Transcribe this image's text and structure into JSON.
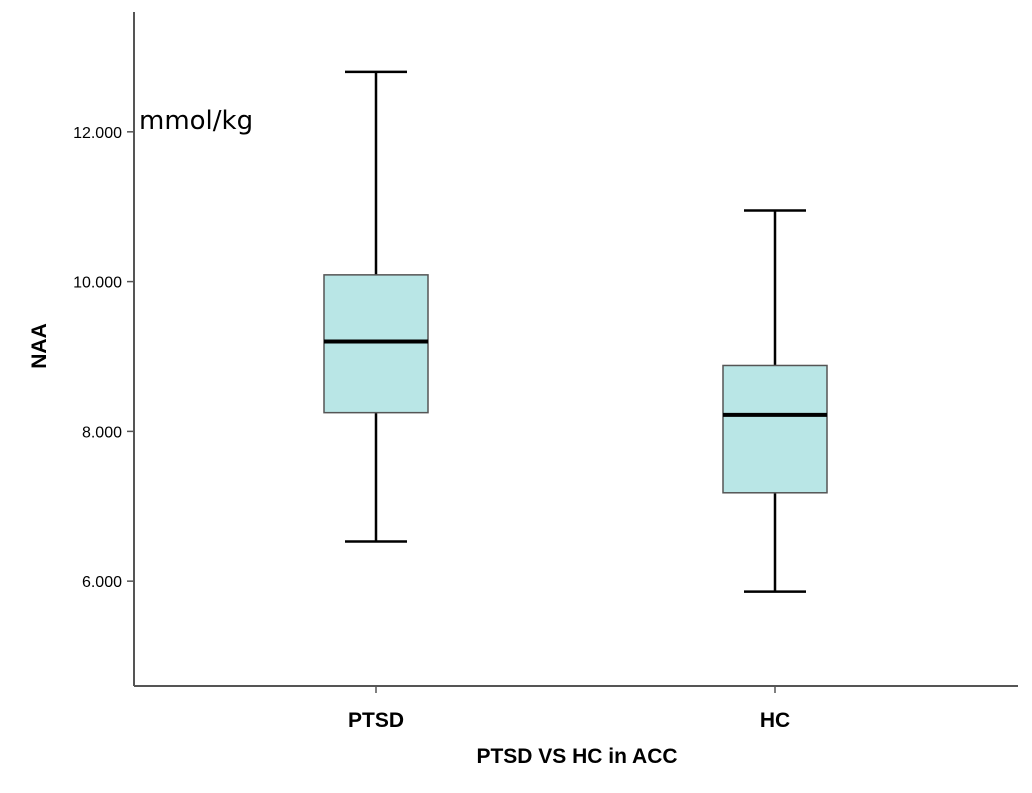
{
  "chart_data": {
    "type": "box",
    "title": "",
    "xlabel": "PTSD VS HC in ACC",
    "ylabel": "NAA",
    "unit_label": "mmol/kg",
    "ylim": [
      4.6,
      13.6
    ],
    "yticks": [
      6,
      8,
      10,
      12
    ],
    "ytick_labels": [
      "6.000",
      "8.000",
      "10.000",
      "12.000"
    ],
    "categories": [
      "PTSD",
      "HC"
    ],
    "boxes": [
      {
        "name": "PTSD",
        "min": 6.53,
        "q1": 8.25,
        "median": 9.2,
        "q3": 10.09,
        "max": 12.8
      },
      {
        "name": "HC",
        "min": 5.86,
        "q1": 7.18,
        "median": 8.22,
        "q3": 8.88,
        "max": 10.95
      }
    ],
    "box_color": "#b9e6e6",
    "line_color": "#000000"
  }
}
